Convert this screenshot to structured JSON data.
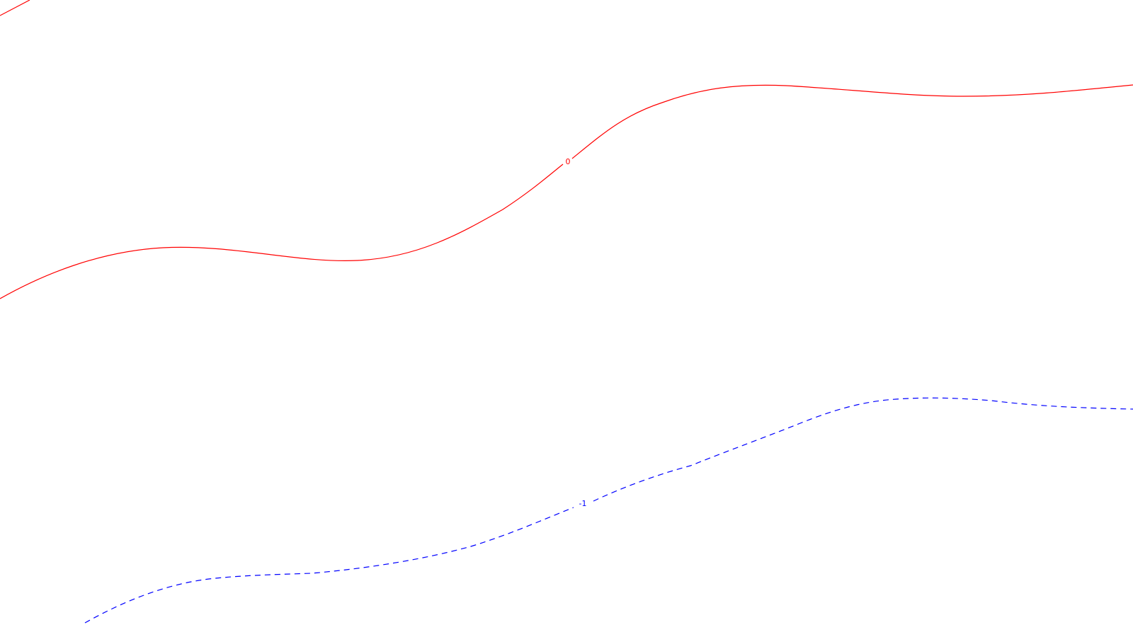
{
  "map": {
    "background_color": "#ffffff",
    "contours": [
      {
        "id": "zero-top-corner",
        "label": "",
        "color": "#ff0000",
        "style": "solid"
      },
      {
        "id": "zero-main",
        "label": "0",
        "color": "#ff0000",
        "style": "solid"
      },
      {
        "id": "minus-one",
        "label": "-1",
        "color": "#0000ff",
        "style": "dashed"
      }
    ]
  }
}
